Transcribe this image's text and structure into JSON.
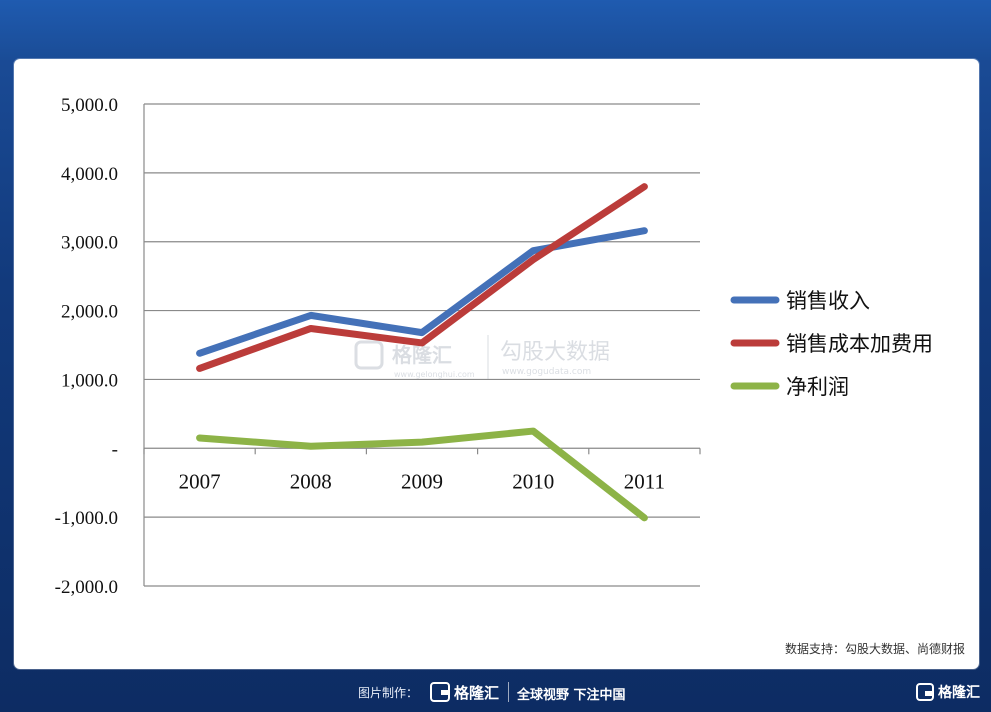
{
  "chart_data": {
    "type": "line",
    "categories": [
      "2007",
      "2008",
      "2009",
      "2010",
      "2011"
    ],
    "series": [
      {
        "name": "销售收入",
        "color": "#4471b8",
        "values": [
          1380,
          1930,
          1680,
          2870,
          3160
        ]
      },
      {
        "name": "销售成本加费用",
        "color": "#bb3c3a",
        "values": [
          1160,
          1740,
          1530,
          2740,
          3800
        ]
      },
      {
        "name": "净利润",
        "color": "#8db347",
        "values": [
          150,
          30,
          90,
          250,
          -1010
        ]
      }
    ],
    "ylim": [
      -2000,
      5000
    ],
    "yticks": [
      {
        "value": 5000,
        "label": "5,000.0"
      },
      {
        "value": 4000,
        "label": "4,000.0"
      },
      {
        "value": 3000,
        "label": "3,000.0"
      },
      {
        "value": 2000,
        "label": "2,000.0"
      },
      {
        "value": 1000,
        "label": "1,000.0"
      },
      {
        "value": 0,
        "label": "-"
      },
      {
        "value": -1000,
        "label": "-1,000.0"
      },
      {
        "value": -2000,
        "label": "-2,000.0"
      }
    ],
    "grid": true,
    "legend_position": "right",
    "title": "",
    "xlabel": "",
    "ylabel": ""
  },
  "watermark": {
    "brand": "格隆汇",
    "brand_url": "www.gelonghui.com",
    "brand2": "勾股大数据",
    "brand2_url": "www.gogudata.com"
  },
  "source_text": "数据支持：勾股大数据、尚德财报",
  "footer": {
    "made_label": "图片制作：",
    "logo_text": "格隆汇",
    "slogan": "全球视野 下注中国",
    "corner_logo_text": "格隆汇"
  }
}
